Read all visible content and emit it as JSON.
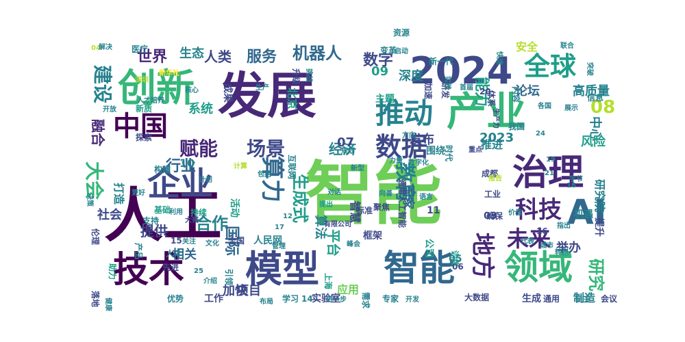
{
  "palette": {
    "dark_purple": "#440154",
    "purple": "#482878",
    "indigo": "#3e4989",
    "blue": "#31688e",
    "teal": "#26828e",
    "green_teal": "#1f9e89",
    "green": "#35b779",
    "lime": "#6ece58",
    "yellow_green": "#b5de2b",
    "yellow": "#fde725"
  },
  "words": [
    {
      "text": "人工",
      "color": "dark_purple"
    },
    {
      "text": "智能",
      "color": "lime"
    },
    {
      "text": "发展",
      "color": "purple"
    },
    {
      "text": "2024",
      "color": "indigo"
    },
    {
      "text": "创新",
      "color": "green"
    },
    {
      "text": "技术",
      "color": "dark_purple"
    },
    {
      "text": "模型",
      "color": "indigo"
    },
    {
      "text": "智能",
      "color": "blue"
    },
    {
      "text": "领域",
      "color": "green"
    },
    {
      "text": "产业",
      "color": "green"
    },
    {
      "text": "全球",
      "color": "green_teal"
    },
    {
      "text": "推动",
      "color": "teal"
    },
    {
      "text": "治理",
      "color": "purple"
    },
    {
      "text": "企业",
      "color": "indigo"
    },
    {
      "text": "中国",
      "color": "dark_purple"
    },
    {
      "text": "AI",
      "color": "blue"
    },
    {
      "text": "数据",
      "color": "indigo"
    },
    {
      "text": "算力",
      "color": "blue"
    },
    {
      "text": "教育",
      "color": "teal"
    },
    {
      "text": "地方",
      "color": "purple"
    },
    {
      "text": "建设",
      "color": "teal"
    },
    {
      "text": "大会",
      "color": "green"
    },
    {
      "text": "科技",
      "color": "purple"
    },
    {
      "text": "未来",
      "color": "purple"
    },
    {
      "text": "赋能",
      "color": "purple"
    },
    {
      "text": "场景",
      "color": "indigo"
    },
    {
      "text": "08",
      "color": "yellow_green"
    },
    {
      "text": "能力",
      "color": "green_teal"
    },
    {
      "text": "生成式",
      "color": "green_teal"
    },
    {
      "text": "世界",
      "color": "purple"
    },
    {
      "text": "机器人",
      "color": "blue"
    },
    {
      "text": "服务",
      "color": "blue"
    },
    {
      "text": "数字",
      "color": "indigo"
    },
    {
      "text": "人类",
      "color": "indigo"
    },
    {
      "text": "生态",
      "color": "teal"
    },
    {
      "text": "融合",
      "color": "purple"
    },
    {
      "text": "行业",
      "color": "blue"
    },
    {
      "text": "合作",
      "color": "teal"
    },
    {
      "text": "国际",
      "color": "blue"
    },
    {
      "text": "发布",
      "color": "indigo"
    },
    {
      "text": "2023",
      "color": "teal"
    },
    {
      "text": "平台",
      "color": "green_teal"
    },
    {
      "text": "研究",
      "color": "green"
    },
    {
      "text": "经济",
      "color": "teal"
    },
    {
      "text": "论坛",
      "color": "blue"
    },
    {
      "text": "高质量",
      "color": "teal"
    },
    {
      "text": "中心",
      "color": "teal"
    },
    {
      "text": "风险",
      "color": "green_teal"
    },
    {
      "text": "深度",
      "color": "teal"
    },
    {
      "text": "系统",
      "color": "green_teal"
    },
    {
      "text": "提供",
      "color": "indigo"
    },
    {
      "text": "相关",
      "color": "blue"
    },
    {
      "text": "社会",
      "color": "indigo"
    },
    {
      "text": "打造",
      "color": "teal"
    },
    {
      "text": "北京",
      "color": "green_teal"
    },
    {
      "text": "加快",
      "color": "indigo"
    },
    {
      "text": "项目",
      "color": "indigo"
    },
    {
      "text": "应用",
      "color": "lime"
    },
    {
      "text": "智慧",
      "color": "indigo"
    },
    {
      "text": "研究院",
      "color": "teal"
    },
    {
      "text": "举办",
      "color": "indigo"
    },
    {
      "text": "推进",
      "color": "teal"
    },
    {
      "text": "国家",
      "color": "blue"
    },
    {
      "text": "算法",
      "color": "teal"
    },
    {
      "text": "活动",
      "color": "green_teal"
    },
    {
      "text": "人民网",
      "color": "teal"
    },
    {
      "text": "09",
      "color": "green_teal"
    },
    {
      "text": "07",
      "color": "indigo"
    },
    {
      "text": "10",
      "color": "teal"
    },
    {
      "text": "全国",
      "color": "indigo"
    },
    {
      "text": "工作",
      "color": "indigo"
    },
    {
      "text": "生成",
      "color": "indigo"
    },
    {
      "text": "通用",
      "color": "indigo"
    },
    {
      "text": "制造",
      "color": "teal"
    },
    {
      "text": "会议",
      "color": "indigo"
    },
    {
      "text": "人才",
      "color": "teal"
    },
    {
      "text": "引领",
      "color": "teal"
    },
    {
      "text": "学习",
      "color": "teal"
    },
    {
      "text": "专家",
      "color": "teal"
    },
    {
      "text": "需求",
      "color": "teal"
    },
    {
      "text": "框架",
      "color": "indigo"
    },
    {
      "text": "上海",
      "color": "green_teal"
    },
    {
      "text": "实验室",
      "color": "indigo"
    },
    {
      "text": "14",
      "color": "teal"
    },
    {
      "text": "大数据",
      "color": "indigo"
    },
    {
      "text": "公司",
      "color": "green_teal"
    },
    {
      "text": "训练",
      "color": "green_teal"
    },
    {
      "text": "提升",
      "color": "indigo"
    },
    {
      "text": "医疗",
      "color": "teal"
    },
    {
      "text": "开放",
      "color": "teal"
    },
    {
      "text": "新质",
      "color": "green_teal"
    },
    {
      "text": "探索",
      "color": "indigo"
    },
    {
      "text": "构建",
      "color": "teal"
    },
    {
      "text": "基础",
      "color": "green_teal"
    },
    {
      "text": "支持",
      "color": "teal"
    },
    {
      "text": "伦理",
      "color": "indigo"
    },
    {
      "text": "落地",
      "color": "indigo"
    },
    {
      "text": "先进",
      "color": "indigo"
    },
    {
      "text": "优势",
      "color": "teal"
    },
    {
      "text": "助力",
      "color": "green_teal"
    },
    {
      "text": "产品",
      "color": "teal"
    },
    {
      "text": "升级",
      "color": "indigo"
    },
    {
      "text": "挑战",
      "color": "teal"
    },
    {
      "text": "主题",
      "color": "green_teal"
    },
    {
      "text": "成果",
      "color": "indigo"
    },
    {
      "text": "研发",
      "color": "indigo"
    },
    {
      "text": "信息",
      "color": "teal"
    },
    {
      "text": "体系",
      "color": "indigo"
    },
    {
      "text": "加速",
      "color": "indigo"
    },
    {
      "text": "新一代",
      "color": "teal"
    },
    {
      "text": "我国",
      "color": "teal"
    },
    {
      "text": "时代",
      "color": "teal"
    },
    {
      "text": "围绕",
      "color": "teal"
    },
    {
      "text": "重点",
      "color": "indigo"
    },
    {
      "text": "成都",
      "color": "indigo"
    },
    {
      "text": "工业",
      "color": "indigo"
    },
    {
      "text": "聚焦",
      "color": "indigo"
    },
    {
      "text": "标准",
      "color": "indigo"
    },
    {
      "text": "确保",
      "color": "indigo"
    },
    {
      "text": "有限公司",
      "color": "indigo"
    },
    {
      "text": "通用人工智能",
      "color": "indigo"
    },
    {
      "text": "持续",
      "color": "green_teal"
    },
    {
      "text": "互联网",
      "color": "teal"
    },
    {
      "text": "提出",
      "color": "green_teal"
    },
    {
      "text": "机遇",
      "color": "teal"
    },
    {
      "text": "安全",
      "color": "yellow_green"
    },
    {
      "text": "05",
      "color": "teal"
    },
    {
      "text": "06",
      "color": "indigo"
    },
    {
      "text": "03",
      "color": "indigo"
    },
    {
      "text": "11",
      "color": "indigo"
    },
    {
      "text": "15",
      "color": "indigo"
    },
    {
      "text": "20",
      "color": "indigo"
    },
    {
      "text": "16",
      "color": "indigo"
    },
    {
      "text": "04",
      "color": "yellow_green"
    },
    {
      "text": "核心",
      "color": "teal"
    },
    {
      "text": "资源",
      "color": "teal"
    },
    {
      "text": "变革",
      "color": "teal"
    },
    {
      "text": "启动",
      "color": "teal"
    },
    {
      "text": "实践",
      "color": "teal"
    },
    {
      "text": "快速",
      "color": "teal"
    },
    {
      "text": "内容",
      "color": "teal"
    },
    {
      "text": "联合",
      "color": "teal"
    },
    {
      "text": "展示",
      "color": "teal"
    },
    {
      "text": "突破",
      "color": "teal"
    },
    {
      "text": "首届",
      "color": "teal"
    },
    {
      "text": "生产力",
      "color": "indigo"
    },
    {
      "text": "价值",
      "color": "teal"
    },
    {
      "text": "自主",
      "color": "teal"
    },
    {
      "text": "新型",
      "color": "teal"
    },
    {
      "text": "计算",
      "color": "yellow_green"
    },
    {
      "text": "方向",
      "color": "teal"
    },
    {
      "text": "力量",
      "color": "teal"
    },
    {
      "text": "数字化",
      "color": "teal"
    },
    {
      "text": "决策",
      "color": "teal"
    },
    {
      "text": "更好",
      "color": "teal"
    },
    {
      "text": "利用",
      "color": "teal"
    },
    {
      "text": "大赛",
      "color": "indigo"
    },
    {
      "text": "包括",
      "color": "teal"
    },
    {
      "text": "对话",
      "color": "teal"
    },
    {
      "text": "语言",
      "color": "teal"
    },
    {
      "text": "向善",
      "color": "teal"
    },
    {
      "text": "布局",
      "color": "teal"
    },
    {
      "text": "进一步",
      "color": "teal"
    },
    {
      "text": "开发",
      "color": "teal"
    },
    {
      "text": "城市",
      "color": "teal"
    },
    {
      "text": "转型",
      "color": "teal"
    },
    {
      "text": "代表",
      "color": "teal"
    },
    {
      "text": "峰会",
      "color": "teal"
    },
    {
      "text": "管理",
      "color": "teal"
    },
    {
      "text": "关注",
      "color": "teal"
    },
    {
      "text": "文化",
      "color": "teal"
    },
    {
      "text": "指出",
      "color": "teal"
    },
    {
      "text": "生产",
      "color": "teal"
    },
    {
      "text": "报告",
      "color": "yellow_green"
    },
    {
      "text": "各国",
      "color": "teal"
    },
    {
      "text": "新华社",
      "color": "yellow"
    },
    {
      "text": "深圳",
      "color": "yellow_green"
    },
    {
      "text": "人才培养",
      "color": "teal"
    },
    {
      "text": "介绍",
      "color": "teal"
    },
    {
      "text": "规划",
      "color": "teal"
    },
    {
      "text": "健康",
      "color": "teal"
    },
    {
      "text": "解决",
      "color": "teal"
    },
    {
      "text": "计划",
      "color": "teal"
    },
    {
      "text": "字节",
      "color": "teal"
    },
    {
      "text": "12",
      "color": "teal"
    },
    {
      "text": "17",
      "color": "teal"
    },
    {
      "text": "18",
      "color": "teal"
    },
    {
      "text": "19",
      "color": "teal"
    },
    {
      "text": "21",
      "color": "teal"
    },
    {
      "text": "24",
      "color": "teal"
    },
    {
      "text": "25",
      "color": "teal"
    },
    {
      "text": "26",
      "color": "teal"
    },
    {
      "text": "27",
      "color": "teal"
    },
    {
      "text": "28",
      "color": "teal"
    },
    {
      "text": "29",
      "color": "indigo"
    },
    {
      "text": "30",
      "color": "teal"
    }
  ]
}
